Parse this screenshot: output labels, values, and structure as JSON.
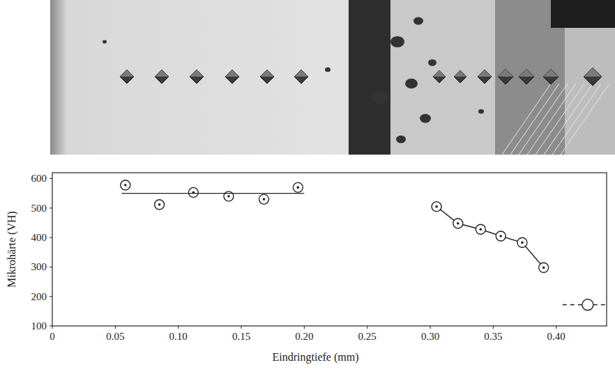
{
  "chart_data": {
    "type": "scatter",
    "xlabel": "Eindringtiefe (mm)",
    "ylabel": "Mikrohärte (VH)",
    "xlim": [
      0,
      0.44
    ],
    "ylim": [
      100,
      620
    ],
    "xticks": [
      0,
      0.05,
      {
        "value": 0.1,
        "label": "0.10"
      },
      0.15,
      {
        "value": 0.2,
        "label": "0.20"
      },
      0.25,
      {
        "value": 0.3,
        "label": "0.30"
      },
      0.35,
      {
        "value": 0.4,
        "label": "0.40"
      }
    ],
    "yticks": [
      100,
      200,
      300,
      400,
      500,
      600
    ],
    "grid": false,
    "series": [
      {
        "type": "scatter",
        "marker": "circle-dot",
        "line_style": "none",
        "color": "#222222",
        "x": [
          0.058,
          0.085,
          0.112,
          0.14,
          0.168,
          0.195
        ],
        "values": [
          578,
          512,
          553,
          540,
          530,
          570
        ]
      },
      {
        "type": "line",
        "marker": "none",
        "line_style": "solid",
        "color": "#222222",
        "x": [
          0.055,
          0.2
        ],
        "values": [
          550,
          550
        ]
      },
      {
        "type": "line",
        "marker": "circle-dot",
        "line_style": "solid",
        "color": "#222222",
        "x": [
          0.305,
          0.322,
          0.34,
          0.356,
          0.373,
          0.39
        ],
        "values": [
          505,
          448,
          428,
          405,
          383,
          298
        ]
      },
      {
        "type": "line",
        "marker": "none",
        "line_style": "dashed",
        "color": "#222222",
        "x": [
          0.405,
          0.44
        ],
        "values": [
          172,
          172
        ]
      },
      {
        "type": "scatter",
        "marker": "circle",
        "line_style": "none",
        "color": "#222222",
        "x": [
          0.425
        ],
        "values": [
          172
        ]
      }
    ]
  }
}
